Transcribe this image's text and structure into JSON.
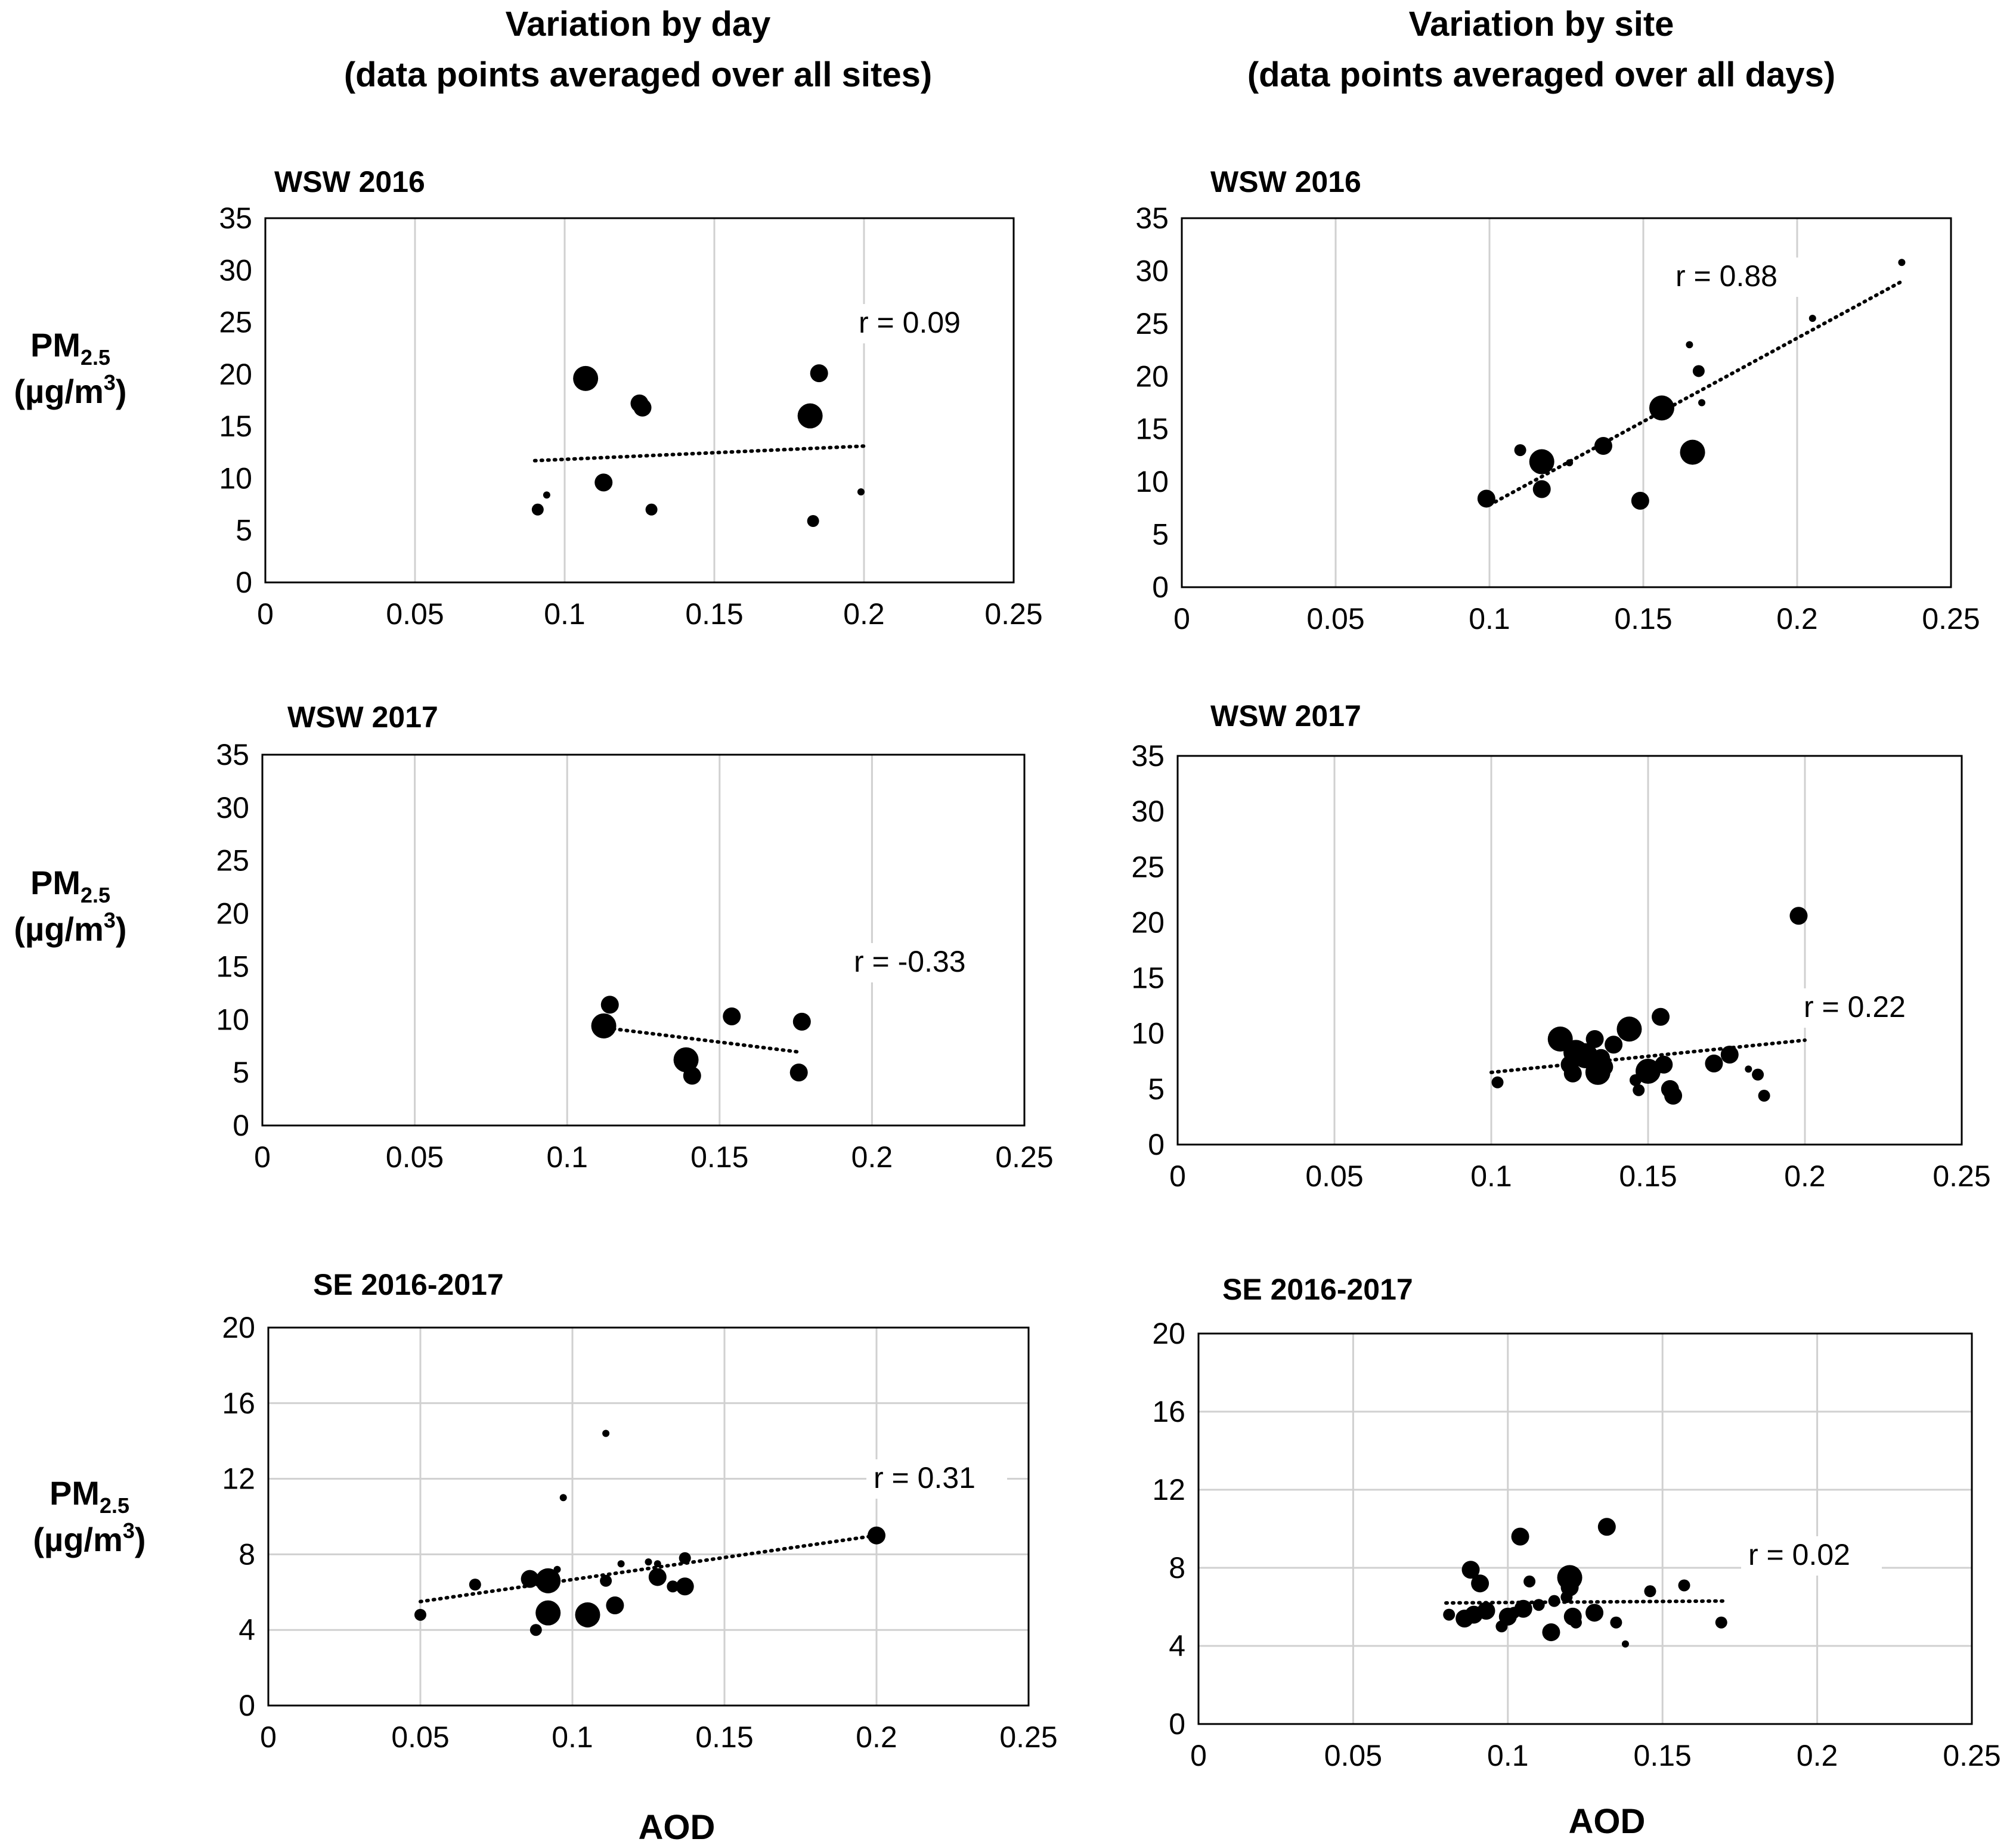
{
  "column_titles": [
    {
      "line1": "Variation by day",
      "line2": "(data points averaged over all sites)"
    },
    {
      "line1": "Variation by site",
      "line2": "(data points averaged over all days)"
    }
  ],
  "ylabel": {
    "main": "PM",
    "sub": "2.5",
    "unit": "(µg/m",
    "sup": "3",
    "unit_end": ")"
  },
  "xlabel": "AOD",
  "chart_data": [
    {
      "type": "scatter",
      "title": "WSW 2016",
      "r_label": "r = 0.09",
      "xlim": [
        0,
        0.25
      ],
      "ylim": [
        0,
        35
      ],
      "xticks": [
        "0",
        "0.05",
        "0.1",
        "0.15",
        "0.2",
        "0.25"
      ],
      "yticks": [
        "0",
        "5",
        "10",
        "15",
        "20",
        "25",
        "30",
        "35"
      ],
      "grid": "vertical",
      "trendline": {
        "style": "dotted",
        "x": [
          0.09,
          0.2
        ],
        "y": [
          11.7,
          13.1
        ]
      },
      "points": [
        {
          "x": 0.107,
          "y": 19.6,
          "size": "L"
        },
        {
          "x": 0.125,
          "y": 17.2,
          "size": "M"
        },
        {
          "x": 0.126,
          "y": 16.8,
          "size": "M"
        },
        {
          "x": 0.113,
          "y": 9.6,
          "size": "M"
        },
        {
          "x": 0.091,
          "y": 7.0,
          "size": "S"
        },
        {
          "x": 0.094,
          "y": 8.4,
          "size": "XS"
        },
        {
          "x": 0.129,
          "y": 7.0,
          "size": "S"
        },
        {
          "x": 0.185,
          "y": 20.1,
          "size": "M"
        },
        {
          "x": 0.182,
          "y": 16.0,
          "size": "L"
        },
        {
          "x": 0.183,
          "y": 5.9,
          "size": "S"
        },
        {
          "x": 0.199,
          "y": 8.7,
          "size": "XS"
        }
      ]
    },
    {
      "type": "scatter",
      "title": "WSW 2016",
      "r_label": "r = 0.88",
      "xlim": [
        0,
        0.25
      ],
      "ylim": [
        0,
        35
      ],
      "xticks": [
        "0",
        "0.05",
        "0.1",
        "0.15",
        "0.2",
        "0.25"
      ],
      "yticks": [
        "0",
        "5",
        "10",
        "15",
        "20",
        "25",
        "30",
        "35"
      ],
      "grid": "vertical",
      "trendline": {
        "style": "dotted",
        "x": [
          0.1,
          0.234
        ],
        "y": [
          7.8,
          29.0
        ]
      },
      "points": [
        {
          "x": 0.099,
          "y": 8.4,
          "size": "M"
        },
        {
          "x": 0.11,
          "y": 13.0,
          "size": "S"
        },
        {
          "x": 0.117,
          "y": 11.9,
          "size": "L"
        },
        {
          "x": 0.117,
          "y": 9.3,
          "size": "M"
        },
        {
          "x": 0.126,
          "y": 11.8,
          "size": "XS"
        },
        {
          "x": 0.137,
          "y": 13.4,
          "size": "M"
        },
        {
          "x": 0.149,
          "y": 8.2,
          "size": "M"
        },
        {
          "x": 0.156,
          "y": 17.0,
          "size": "L"
        },
        {
          "x": 0.165,
          "y": 23.0,
          "size": "XS"
        },
        {
          "x": 0.168,
          "y": 20.5,
          "size": "S"
        },
        {
          "x": 0.169,
          "y": 17.5,
          "size": "XS"
        },
        {
          "x": 0.166,
          "y": 12.8,
          "size": "L"
        },
        {
          "x": 0.205,
          "y": 25.5,
          "size": "XS"
        },
        {
          "x": 0.234,
          "y": 30.8,
          "size": "XS"
        }
      ]
    },
    {
      "type": "scatter",
      "title": "WSW 2017",
      "r_label": "r = -0.33",
      "xlim": [
        0,
        0.25
      ],
      "ylim": [
        0,
        35
      ],
      "xticks": [
        "0",
        "0.05",
        "0.1",
        "0.15",
        "0.2",
        "0.25"
      ],
      "yticks": [
        "0",
        "5",
        "10",
        "15",
        "20",
        "25",
        "30",
        "35"
      ],
      "grid": "vertical",
      "trendline": {
        "style": "dotted",
        "x": [
          0.113,
          0.177
        ],
        "y": [
          9.2,
          6.9
        ]
      },
      "points": [
        {
          "x": 0.114,
          "y": 11.4,
          "size": "M"
        },
        {
          "x": 0.112,
          "y": 9.4,
          "size": "L"
        },
        {
          "x": 0.139,
          "y": 6.2,
          "size": "L"
        },
        {
          "x": 0.141,
          "y": 4.7,
          "size": "M"
        },
        {
          "x": 0.154,
          "y": 10.3,
          "size": "M"
        },
        {
          "x": 0.177,
          "y": 9.8,
          "size": "M"
        },
        {
          "x": 0.176,
          "y": 5.0,
          "size": "M"
        }
      ]
    },
    {
      "type": "scatter",
      "title": "WSW 2017",
      "r_label": "r = 0.22",
      "xlim": [
        0,
        0.25
      ],
      "ylim": [
        0,
        35
      ],
      "xticks": [
        "0",
        "0.05",
        "0.1",
        "0.15",
        "0.2",
        "0.25"
      ],
      "yticks": [
        "0",
        "5",
        "10",
        "15",
        "20",
        "25",
        "30",
        "35"
      ],
      "grid": "vertical",
      "trendline": {
        "style": "dotted",
        "x": [
          0.1,
          0.2
        ],
        "y": [
          6.5,
          9.4
        ]
      },
      "points": [
        {
          "x": 0.102,
          "y": 5.6,
          "size": "S"
        },
        {
          "x": 0.122,
          "y": 9.5,
          "size": "L"
        },
        {
          "x": 0.125,
          "y": 7.2,
          "size": "M"
        },
        {
          "x": 0.126,
          "y": 6.4,
          "size": "M"
        },
        {
          "x": 0.127,
          "y": 8.3,
          "size": "L"
        },
        {
          "x": 0.13,
          "y": 8.0,
          "size": "L"
        },
        {
          "x": 0.132,
          "y": 7.5,
          "size": "M"
        },
        {
          "x": 0.133,
          "y": 9.5,
          "size": "M"
        },
        {
          "x": 0.134,
          "y": 6.5,
          "size": "L"
        },
        {
          "x": 0.135,
          "y": 7.8,
          "size": "M"
        },
        {
          "x": 0.136,
          "y": 7.0,
          "size": "M"
        },
        {
          "x": 0.139,
          "y": 9.0,
          "size": "M"
        },
        {
          "x": 0.144,
          "y": 10.4,
          "size": "L"
        },
        {
          "x": 0.146,
          "y": 5.8,
          "size": "S"
        },
        {
          "x": 0.147,
          "y": 4.9,
          "size": "S"
        },
        {
          "x": 0.15,
          "y": 6.6,
          "size": "L"
        },
        {
          "x": 0.154,
          "y": 11.5,
          "size": "M"
        },
        {
          "x": 0.155,
          "y": 7.2,
          "size": "M"
        },
        {
          "x": 0.157,
          "y": 5.0,
          "size": "M"
        },
        {
          "x": 0.158,
          "y": 4.4,
          "size": "M"
        },
        {
          "x": 0.171,
          "y": 7.3,
          "size": "M"
        },
        {
          "x": 0.176,
          "y": 8.1,
          "size": "M"
        },
        {
          "x": 0.182,
          "y": 6.8,
          "size": "XS"
        },
        {
          "x": 0.185,
          "y": 6.3,
          "size": "S"
        },
        {
          "x": 0.187,
          "y": 4.4,
          "size": "S"
        },
        {
          "x": 0.198,
          "y": 20.6,
          "size": "M"
        }
      ]
    },
    {
      "type": "scatter",
      "title": "SE 2016-2017",
      "r_label": "r = 0.31",
      "xlim": [
        0,
        0.25
      ],
      "ylim": [
        0,
        20
      ],
      "xticks": [
        "0",
        "0.05",
        "0.1",
        "0.15",
        "0.2",
        "0.25"
      ],
      "yticks": [
        "0",
        "4",
        "8",
        "12",
        "16",
        "20"
      ],
      "grid": "both",
      "trendline": {
        "style": "dotted",
        "x": [
          0.05,
          0.2
        ],
        "y": [
          5.5,
          9.0
        ]
      },
      "points": [
        {
          "x": 0.05,
          "y": 4.8,
          "size": "S"
        },
        {
          "x": 0.068,
          "y": 6.4,
          "size": "S"
        },
        {
          "x": 0.086,
          "y": 6.7,
          "size": "M"
        },
        {
          "x": 0.088,
          "y": 4.0,
          "size": "S"
        },
        {
          "x": 0.092,
          "y": 6.6,
          "size": "L"
        },
        {
          "x": 0.092,
          "y": 4.9,
          "size": "L"
        },
        {
          "x": 0.095,
          "y": 7.2,
          "size": "XS"
        },
        {
          "x": 0.097,
          "y": 11.0,
          "size": "XS"
        },
        {
          "x": 0.105,
          "y": 4.8,
          "size": "L"
        },
        {
          "x": 0.105,
          "y": 4.6,
          "size": "M"
        },
        {
          "x": 0.111,
          "y": 6.6,
          "size": "S"
        },
        {
          "x": 0.111,
          "y": 14.4,
          "size": "XS"
        },
        {
          "x": 0.114,
          "y": 5.3,
          "size": "M"
        },
        {
          "x": 0.116,
          "y": 7.5,
          "size": "XS"
        },
        {
          "x": 0.125,
          "y": 7.6,
          "size": "XS"
        },
        {
          "x": 0.128,
          "y": 6.8,
          "size": "M"
        },
        {
          "x": 0.128,
          "y": 7.5,
          "size": "XS"
        },
        {
          "x": 0.133,
          "y": 6.3,
          "size": "S"
        },
        {
          "x": 0.137,
          "y": 6.3,
          "size": "M"
        },
        {
          "x": 0.137,
          "y": 7.8,
          "size": "S"
        },
        {
          "x": 0.2,
          "y": 9.0,
          "size": "M"
        }
      ]
    },
    {
      "type": "scatter",
      "title": "SE 2016-2017",
      "r_label": "r = 0.02",
      "xlim": [
        0,
        0.25
      ],
      "ylim": [
        0,
        20
      ],
      "xticks": [
        "0",
        "0.05",
        "0.1",
        "0.15",
        "0.2",
        "0.25"
      ],
      "yticks": [
        "0",
        "4",
        "8",
        "12",
        "16",
        "20"
      ],
      "grid": "both",
      "trendline": {
        "style": "dotted",
        "x": [
          0.08,
          0.17
        ],
        "y": [
          6.2,
          6.3
        ]
      },
      "points": [
        {
          "x": 0.081,
          "y": 5.6,
          "size": "S"
        },
        {
          "x": 0.086,
          "y": 5.4,
          "size": "M"
        },
        {
          "x": 0.088,
          "y": 7.9,
          "size": "M"
        },
        {
          "x": 0.089,
          "y": 5.6,
          "size": "M"
        },
        {
          "x": 0.091,
          "y": 7.2,
          "size": "M"
        },
        {
          "x": 0.093,
          "y": 5.8,
          "size": "M"
        },
        {
          "x": 0.098,
          "y": 5.0,
          "size": "S"
        },
        {
          "x": 0.1,
          "y": 5.5,
          "size": "M"
        },
        {
          "x": 0.102,
          "y": 5.7,
          "size": "S"
        },
        {
          "x": 0.104,
          "y": 9.6,
          "size": "M"
        },
        {
          "x": 0.105,
          "y": 5.9,
          "size": "M"
        },
        {
          "x": 0.107,
          "y": 7.3,
          "size": "S"
        },
        {
          "x": 0.11,
          "y": 6.1,
          "size": "S"
        },
        {
          "x": 0.114,
          "y": 4.7,
          "size": "M"
        },
        {
          "x": 0.115,
          "y": 6.3,
          "size": "S"
        },
        {
          "x": 0.119,
          "y": 6.5,
          "size": "S"
        },
        {
          "x": 0.12,
          "y": 7.5,
          "size": "L"
        },
        {
          "x": 0.12,
          "y": 7.0,
          "size": "M"
        },
        {
          "x": 0.121,
          "y": 5.5,
          "size": "M"
        },
        {
          "x": 0.122,
          "y": 5.2,
          "size": "S"
        },
        {
          "x": 0.128,
          "y": 5.7,
          "size": "M"
        },
        {
          "x": 0.132,
          "y": 10.1,
          "size": "M"
        },
        {
          "x": 0.135,
          "y": 5.2,
          "size": "S"
        },
        {
          "x": 0.138,
          "y": 4.1,
          "size": "XS"
        },
        {
          "x": 0.146,
          "y": 6.8,
          "size": "S"
        },
        {
          "x": 0.157,
          "y": 7.1,
          "size": "S"
        },
        {
          "x": 0.169,
          "y": 5.2,
          "size": "S"
        }
      ]
    }
  ]
}
